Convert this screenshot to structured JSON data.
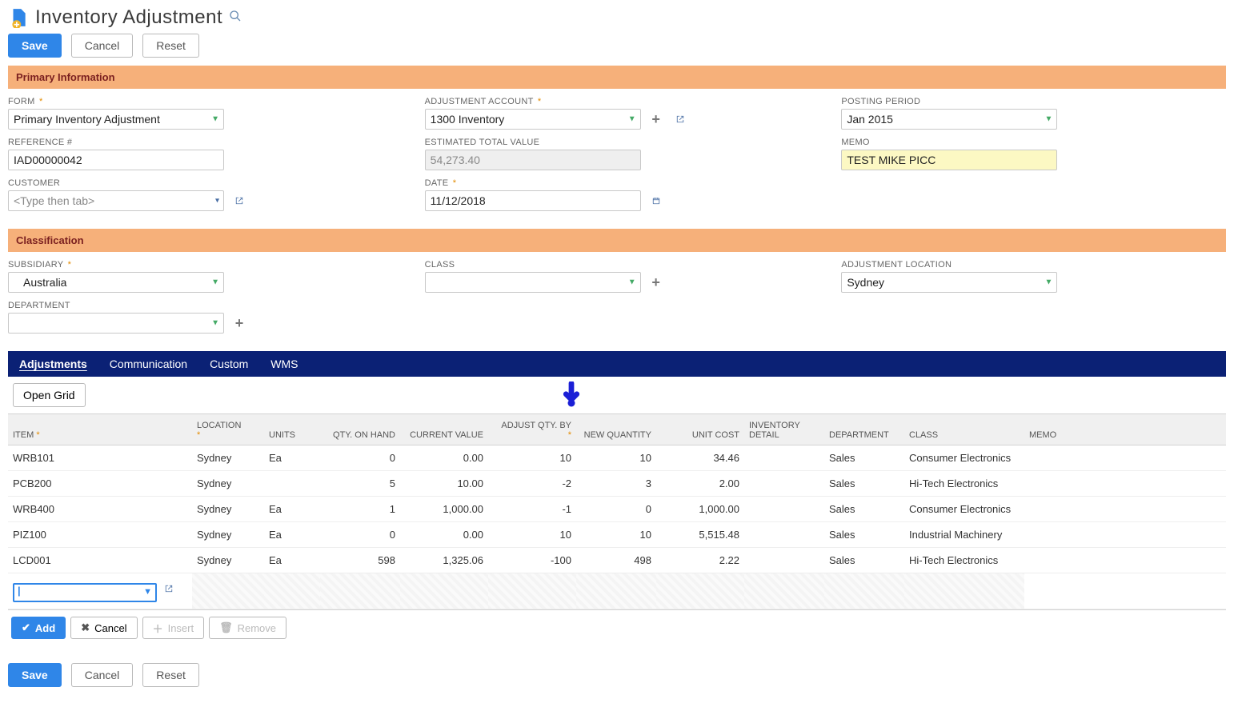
{
  "header": {
    "title": "Inventory Adjustment",
    "search_icon": "search-icon"
  },
  "actions": {
    "save": "Save",
    "cancel": "Cancel",
    "reset": "Reset"
  },
  "sections": {
    "primary": "Primary Information",
    "classification": "Classification"
  },
  "primary": {
    "form_label": "FORM",
    "form_value": "Primary Inventory Adjustment",
    "reference_label": "REFERENCE #",
    "reference_value": "IAD00000042",
    "customer_label": "CUSTOMER",
    "customer_placeholder": "<Type then tab>",
    "adjustment_account_label": "ADJUSTMENT ACCOUNT",
    "adjustment_account_value": "1300 Inventory",
    "est_total_label": "ESTIMATED TOTAL VALUE",
    "est_total_value": "54,273.40",
    "date_label": "DATE",
    "date_value": "11/12/2018",
    "posting_period_label": "POSTING PERIOD",
    "posting_period_value": "Jan 2015",
    "memo_label": "MEMO",
    "memo_value": "TEST MIKE PICC"
  },
  "classification": {
    "subsidiary_label": "SUBSIDIARY",
    "subsidiary_value": "Australia",
    "department_label": "DEPARTMENT",
    "department_value": "",
    "class_label": "CLASS",
    "class_value": "",
    "adjustment_location_label": "ADJUSTMENT LOCATION",
    "adjustment_location_value": "Sydney"
  },
  "tabs": {
    "adjustments": "Adjustments",
    "communication": "Communication",
    "custom": "Custom",
    "wms": "WMS"
  },
  "subtab": {
    "open_grid": "Open Grid"
  },
  "grid": {
    "columns": {
      "item": "ITEM",
      "location": "LOCATION",
      "units": "UNITS",
      "qty_on_hand": "QTY. ON HAND",
      "current_value": "CURRENT VALUE",
      "adjust_qty_by": "ADJUST QTY. BY",
      "new_quantity": "NEW QUANTITY",
      "unit_cost": "UNIT COST",
      "inventory_detail": "INVENTORY DETAIL",
      "department": "DEPARTMENT",
      "class": "CLASS",
      "memo": "MEMO"
    },
    "rows": [
      {
        "item": "WRB101",
        "location": "Sydney",
        "units": "Ea",
        "qty_on_hand": "0",
        "current_value": "0.00",
        "adjust_qty_by": "10",
        "new_quantity": "10",
        "unit_cost": "34.46",
        "inventory_detail": "",
        "department": "Sales",
        "class": "Consumer Electronics",
        "memo": ""
      },
      {
        "item": "PCB200",
        "location": "Sydney",
        "units": "",
        "qty_on_hand": "5",
        "current_value": "10.00",
        "adjust_qty_by": "-2",
        "new_quantity": "3",
        "unit_cost": "2.00",
        "inventory_detail": "",
        "department": "Sales",
        "class": "Hi-Tech Electronics",
        "memo": ""
      },
      {
        "item": "WRB400",
        "location": "Sydney",
        "units": "Ea",
        "qty_on_hand": "1",
        "current_value": "1,000.00",
        "adjust_qty_by": "-1",
        "new_quantity": "0",
        "unit_cost": "1,000.00",
        "inventory_detail": "",
        "department": "Sales",
        "class": "Consumer Electronics",
        "memo": ""
      },
      {
        "item": "PIZ100",
        "location": "Sydney",
        "units": "Ea",
        "qty_on_hand": "0",
        "current_value": "0.00",
        "adjust_qty_by": "10",
        "new_quantity": "10",
        "unit_cost": "5,515.48",
        "inventory_detail": "",
        "department": "Sales",
        "class": "Industrial Machinery",
        "memo": ""
      },
      {
        "item": "LCD001",
        "location": "Sydney",
        "units": "Ea",
        "qty_on_hand": "598",
        "current_value": "1,325.06",
        "adjust_qty_by": "-100",
        "new_quantity": "498",
        "unit_cost": "2.22",
        "inventory_detail": "",
        "department": "Sales",
        "class": "Hi-Tech Electronics",
        "memo": ""
      }
    ],
    "actions": {
      "add": "Add",
      "cancel": "Cancel",
      "insert": "Insert",
      "remove": "Remove"
    }
  },
  "colors": {
    "primary_blue": "#2f86e8",
    "banner_orange": "#f6b07a",
    "banner_text": "#7a1f1f",
    "tabbar_navy": "#0b2175",
    "memo_yellow": "#fcf8c3",
    "required_star": "#e38b00"
  }
}
